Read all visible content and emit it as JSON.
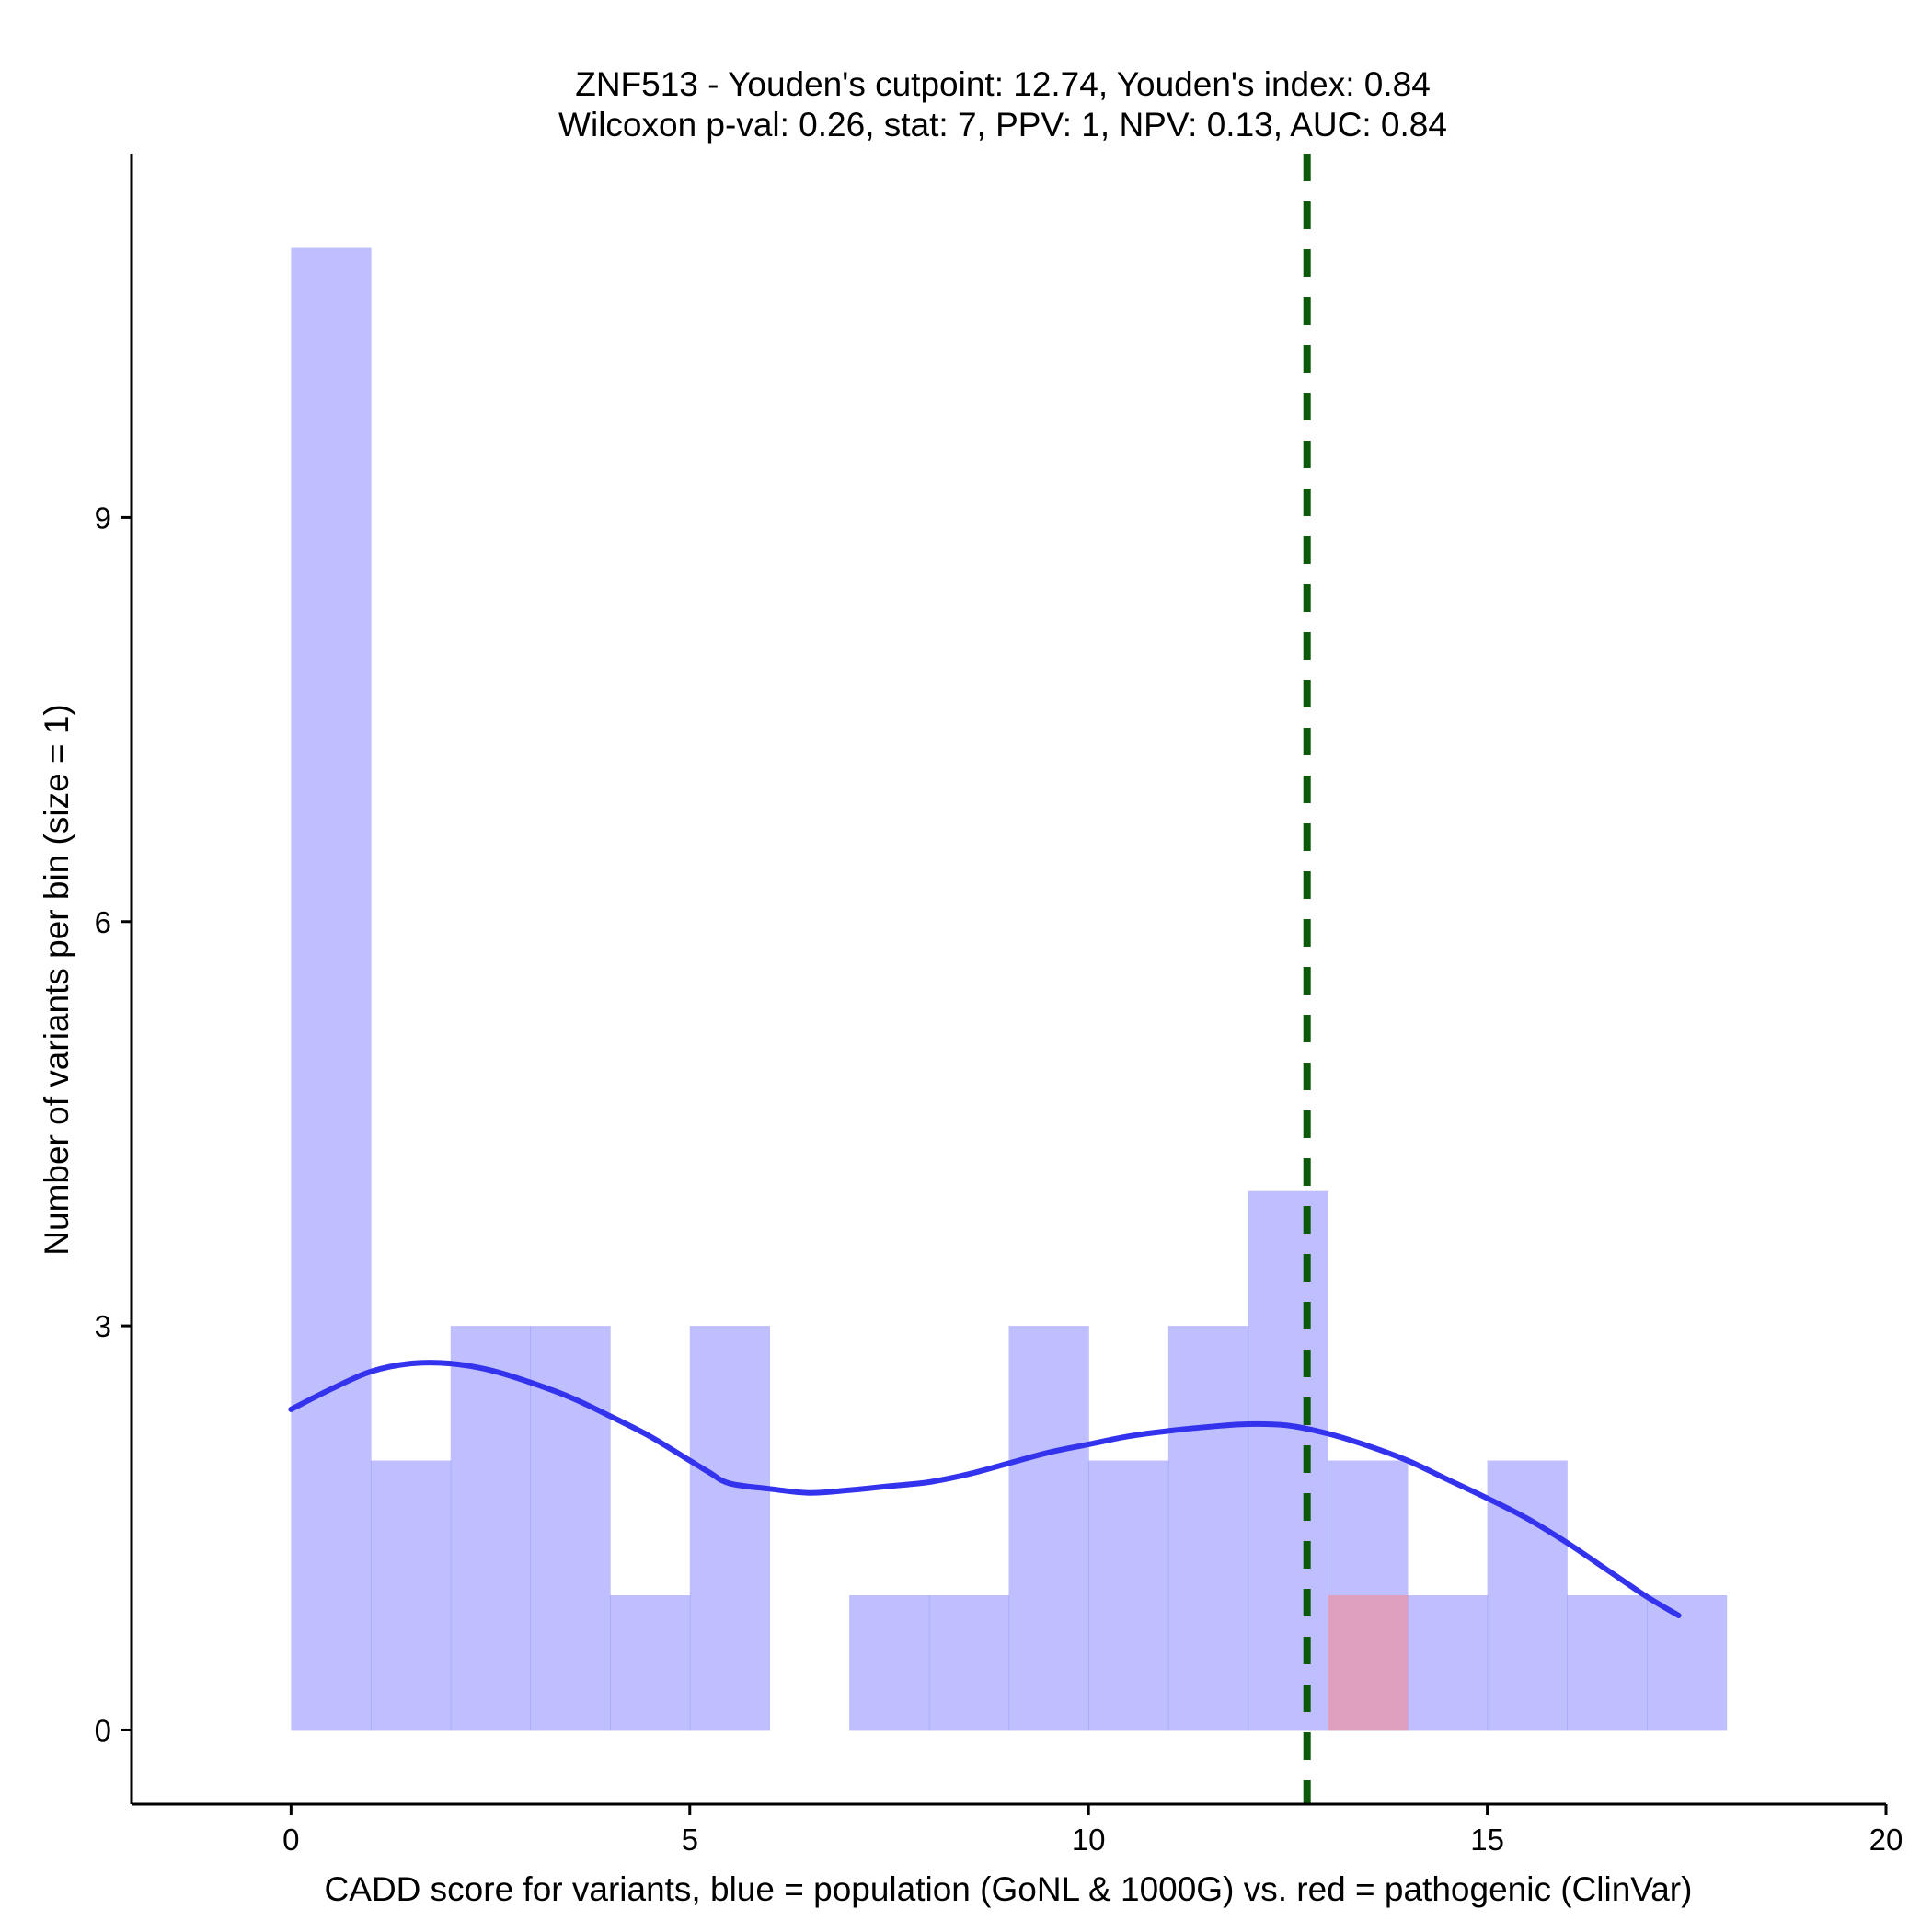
{
  "chart_data": {
    "type": "bar",
    "title_line1": "ZNF513 - Youden's cutpoint: 12.74, Youden's index: 0.84",
    "title_line2": "Wilcoxon p-val: 0.26, stat: 7, PPV: 1, NPV: 0.13, AUC: 0.84",
    "xlabel": "CADD score for variants, blue = population (GoNL & 1000G) vs. red = pathogenic (ClinVar)",
    "ylabel": "Number of variants per bin (size = 1)",
    "xlim": [
      -2,
      20
    ],
    "ylim": [
      -0.55,
      11.7
    ],
    "x_ticks": [
      0,
      5,
      10,
      15,
      20
    ],
    "y_ticks": [
      0,
      3,
      6,
      9
    ],
    "bin_size": 1,
    "series": [
      {
        "color": "#8080ff",
        "opacity": 0.5,
        "bins": [
          {
            "x0": 0,
            "x1": 1,
            "count": 11
          },
          {
            "x0": 1,
            "x1": 2,
            "count": 2
          },
          {
            "x0": 2,
            "x1": 3,
            "count": 3
          },
          {
            "x0": 3,
            "x1": 4,
            "count": 3
          },
          {
            "x0": 4,
            "x1": 5,
            "count": 1
          },
          {
            "x0": 5,
            "x1": 6,
            "count": 3
          },
          {
            "x0": 7,
            "x1": 8,
            "count": 1
          },
          {
            "x0": 8,
            "x1": 9,
            "count": 1
          },
          {
            "x0": 9,
            "x1": 10,
            "count": 3
          },
          {
            "x0": 10,
            "x1": 11,
            "count": 2
          },
          {
            "x0": 11,
            "x1": 12,
            "count": 3
          },
          {
            "x0": 12,
            "x1": 13,
            "count": 4
          },
          {
            "x0": 13,
            "x1": 14,
            "count": 2
          },
          {
            "x0": 14,
            "x1": 15,
            "count": 1
          },
          {
            "x0": 15,
            "x1": 16,
            "count": 2
          },
          {
            "x0": 16,
            "x1": 17,
            "count": 1
          },
          {
            "x0": 17,
            "x1": 18,
            "count": 1
          }
        ]
      },
      {
        "color": "#ff8080",
        "opacity": 0.5,
        "bins": [
          {
            "x0": 13,
            "x1": 14,
            "count": 1
          }
        ]
      }
    ],
    "density_curve": {
      "color": "#3333ee",
      "x": [
        0,
        0.5,
        1,
        1.5,
        2,
        2.5,
        3,
        3.5,
        4,
        4.5,
        5,
        5.25,
        5.5,
        6,
        6.5,
        7,
        7.5,
        8,
        8.5,
        9,
        9.5,
        10,
        10.5,
        11,
        11.5,
        12,
        12.5,
        13,
        13.5,
        14,
        14.5,
        15,
        15.5,
        16,
        16.5,
        17,
        17.4
      ],
      "y": [
        2.38,
        2.53,
        2.66,
        2.72,
        2.72,
        2.67,
        2.58,
        2.47,
        2.33,
        2.18,
        2.0,
        1.91,
        1.83,
        1.79,
        1.76,
        1.78,
        1.81,
        1.84,
        1.9,
        1.98,
        2.06,
        2.12,
        2.18,
        2.22,
        2.25,
        2.27,
        2.26,
        2.2,
        2.11,
        2.0,
        1.86,
        1.72,
        1.57,
        1.39,
        1.19,
        0.99,
        0.85
      ]
    },
    "cutpoint": {
      "x": 12.74,
      "color": "#0a5a0a",
      "style": "dashed"
    }
  }
}
